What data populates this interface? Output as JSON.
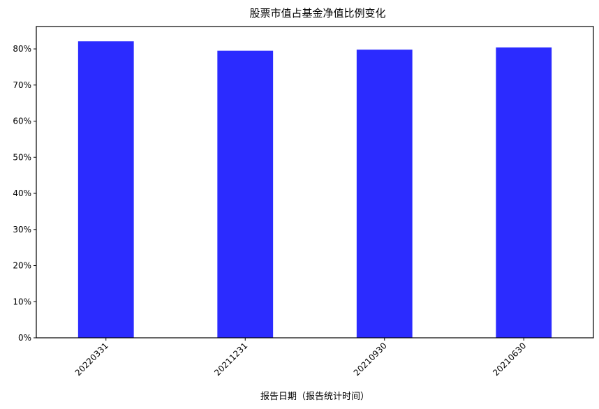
{
  "chart_data": {
    "type": "bar",
    "title": "股票市值占基金净值比例变化",
    "xlabel": "报告日期（报告统计时间）",
    "ylabel": "",
    "categories": [
      "20220331",
      "20211231",
      "20210930",
      "20210630"
    ],
    "values": [
      82.1,
      79.5,
      79.8,
      80.4
    ],
    "value_unit": "%",
    "yticks": [
      "0%",
      "10%",
      "20%",
      "30%",
      "40%",
      "50%",
      "60%",
      "70%",
      "80%"
    ],
    "ylim": [
      0,
      86.2
    ],
    "grid": false,
    "bar_color": "#2b2bff"
  }
}
